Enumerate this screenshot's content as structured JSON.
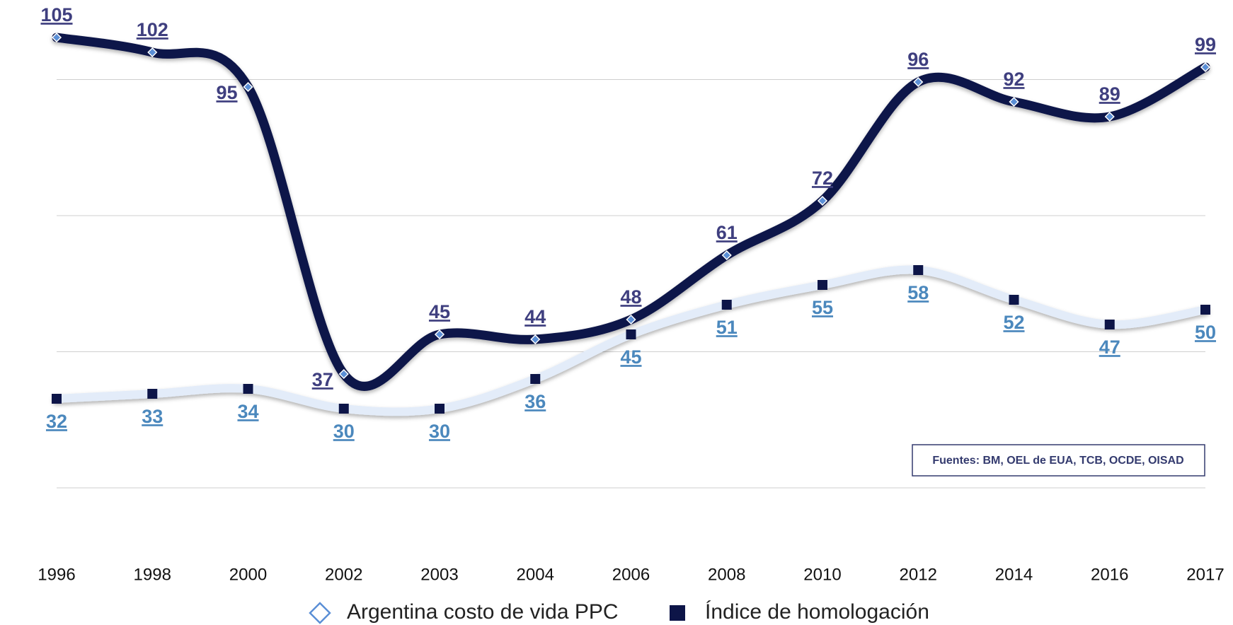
{
  "chart_data": {
    "type": "line",
    "categories": [
      "1996",
      "1998",
      "2000",
      "2002",
      "2003",
      "2004",
      "2006",
      "2008",
      "2010",
      "2012",
      "2014",
      "2016",
      "2017"
    ],
    "series": [
      {
        "name": "Argentina costo de  vida PPC",
        "color": "#0d1548",
        "marker_color": "#5b8fd6",
        "values": [
          105,
          102,
          95,
          37,
          45,
          44,
          48,
          61,
          72,
          96,
          92,
          89,
          99
        ]
      },
      {
        "name": "Índice de homologación",
        "color": "#e3ecf9",
        "marker_color": "#0d1548",
        "values": [
          32,
          33,
          34,
          30,
          30,
          36,
          45,
          51,
          55,
          58,
          52,
          47,
          50
        ]
      }
    ],
    "ylim": [
      0,
      112
    ],
    "yticks": [
      14,
      41.5,
      69,
      96.5
    ],
    "grid": true,
    "annotation": "Fuentes: BM, OEL de EUA, TCB, OCDE, OISAD"
  }
}
